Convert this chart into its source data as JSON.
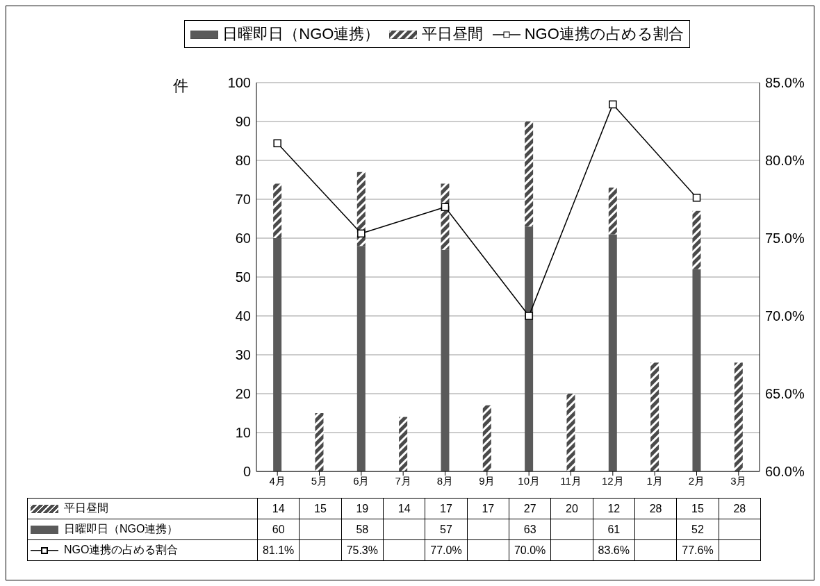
{
  "chart_data": {
    "type": "bar",
    "stacked": true,
    "ylabel": "件",
    "categories": [
      "4月",
      "5月",
      "6月",
      "7月",
      "8月",
      "9月",
      "10月",
      "11月",
      "12月",
      "1月",
      "2月",
      "3月"
    ],
    "series": [
      {
        "name": "日曜即日（NGO連携）",
        "color": "#5a5a5a",
        "values": [
          60,
          null,
          58,
          null,
          57,
          null,
          63,
          null,
          61,
          null,
          52,
          null
        ],
        "value_labels": [
          "60",
          null,
          "58",
          null,
          "57",
          null,
          "63",
          null,
          "61",
          null,
          "52",
          null
        ]
      },
      {
        "name": "平日昼間",
        "color": "#4a4a4a",
        "values": [
          14,
          15,
          19,
          14,
          17,
          17,
          27,
          20,
          12,
          28,
          15,
          28
        ],
        "value_labels": [
          "14",
          "15",
          "19",
          "14",
          "17",
          "17",
          "27",
          "20",
          "12",
          "28",
          "15",
          "28"
        ]
      },
      {
        "name": "NGO連携の占める割合",
        "type": "line",
        "axis": "y2",
        "color": "#000000",
        "marker": "square",
        "values": [
          81.1,
          null,
          75.3,
          null,
          77.0,
          null,
          70.0,
          null,
          83.6,
          null,
          77.6,
          null
        ],
        "value_labels": [
          "81.1%",
          null,
          "75.3%",
          null,
          "77.0%",
          null,
          "70.0%",
          null,
          "83.6%",
          null,
          "77.6%",
          null
        ]
      }
    ],
    "ylim": [
      0,
      100
    ],
    "yticks": [
      0,
      10,
      20,
      30,
      40,
      50,
      60,
      70,
      80,
      90,
      100
    ],
    "y2lim": [
      60,
      85
    ],
    "y2ticks": [
      {
        "value": 60,
        "label": "60.0%"
      },
      {
        "value": 65,
        "label": "65.0%"
      },
      {
        "value": 70,
        "label": "70.0%"
      },
      {
        "value": 75,
        "label": "75.0%"
      },
      {
        "value": 80,
        "label": "80.0%"
      },
      {
        "value": 85,
        "label": "85.0%"
      }
    ],
    "grid": "y",
    "legend": "top"
  }
}
